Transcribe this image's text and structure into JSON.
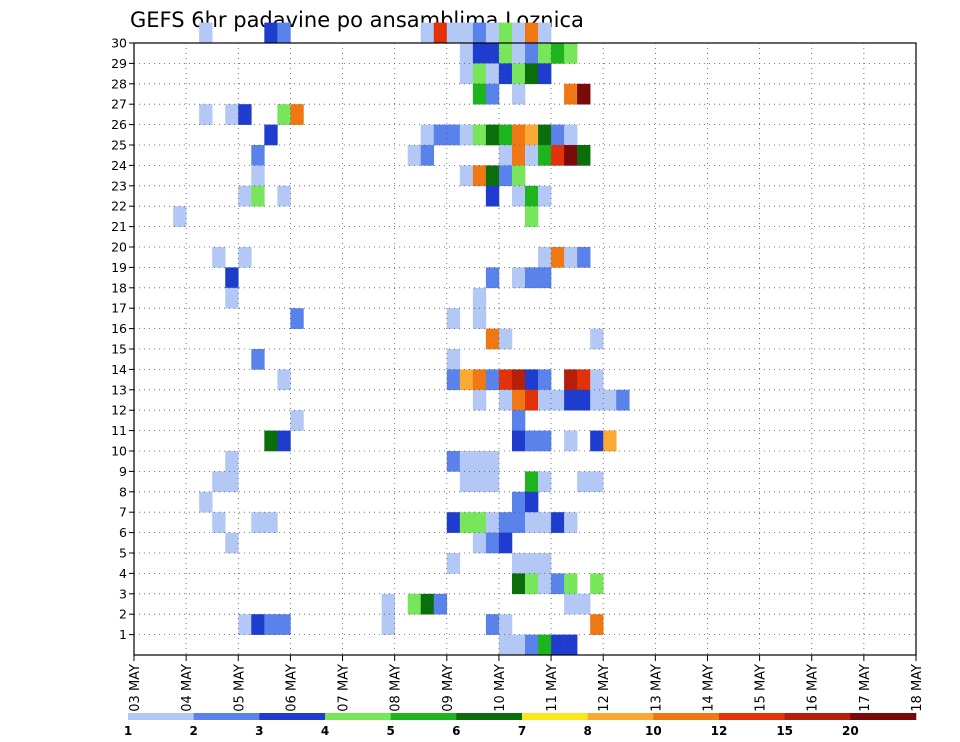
{
  "chart_data": {
    "type": "heatmap",
    "title": "GEFS 6hr padavine po ansamblima Loznica",
    "xlabel": "",
    "ylabel": "",
    "x_ticks": [
      "03 MAY",
      "04 MAY",
      "05 MAY",
      "06 MAY",
      "07 MAY",
      "08 MAY",
      "09 MAY",
      "10 MAY",
      "11 MAY",
      "12 MAY",
      "13 MAY",
      "14 MAY",
      "15 MAY",
      "16 MAY",
      "17 MAY",
      "18 MAY"
    ],
    "y_ticks": [
      "1",
      "2",
      "3",
      "4",
      "5",
      "6",
      "7",
      "8",
      "9",
      "10",
      "11",
      "12",
      "13",
      "14",
      "15",
      "16",
      "17",
      "18",
      "19",
      "20",
      "21",
      "22",
      "23",
      "24",
      "25",
      "26",
      "27",
      "28",
      "29",
      "30"
    ],
    "xlim": [
      0,
      60
    ],
    "ylim": [
      0,
      30
    ],
    "grid": true,
    "legend_position": "bottom",
    "legend": {
      "labels": [
        "1",
        "2",
        "3",
        "4",
        "5",
        "6",
        "7",
        "8",
        "10",
        "12",
        "15",
        "20"
      ],
      "colors": [
        "#b4c8f5",
        "#5a82eb",
        "#1e3ccd",
        "#78e65a",
        "#1eb41e",
        "#0a6e0a",
        "#fae61e",
        "#faaa32",
        "#f07814",
        "#e1320a",
        "#b41e0a",
        "#780a0a"
      ]
    },
    "cells": [
      [
        30,
        5,
        1
      ],
      [
        30,
        10,
        3
      ],
      [
        30,
        11,
        2
      ],
      [
        30,
        22,
        1
      ],
      [
        30,
        23,
        12
      ],
      [
        30,
        24,
        1
      ],
      [
        30,
        25,
        1
      ],
      [
        30,
        26,
        2
      ],
      [
        30,
        27,
        1
      ],
      [
        30,
        28,
        4
      ],
      [
        30,
        29,
        1
      ],
      [
        30,
        30,
        10
      ],
      [
        30,
        31,
        1
      ],
      [
        29,
        25,
        1
      ],
      [
        29,
        26,
        3
      ],
      [
        29,
        27,
        3
      ],
      [
        29,
        28,
        4
      ],
      [
        29,
        29,
        1
      ],
      [
        29,
        30,
        2
      ],
      [
        29,
        31,
        4
      ],
      [
        29,
        32,
        5
      ],
      [
        29,
        33,
        4
      ],
      [
        28,
        25,
        1
      ],
      [
        28,
        26,
        4
      ],
      [
        28,
        27,
        1
      ],
      [
        28,
        28,
        3
      ],
      [
        28,
        29,
        4
      ],
      [
        28,
        30,
        6
      ],
      [
        28,
        31,
        3
      ],
      [
        27,
        26,
        5
      ],
      [
        27,
        27,
        2
      ],
      [
        27,
        29,
        1
      ],
      [
        27,
        33,
        10
      ],
      [
        27,
        34,
        20
      ],
      [
        26,
        5,
        1
      ],
      [
        26,
        7,
        1
      ],
      [
        26,
        8,
        3
      ],
      [
        26,
        11,
        4
      ],
      [
        26,
        12,
        10
      ],
      [
        25,
        10,
        3
      ],
      [
        25,
        22,
        1
      ],
      [
        25,
        23,
        2
      ],
      [
        25,
        24,
        2
      ],
      [
        25,
        25,
        1
      ],
      [
        25,
        26,
        4
      ],
      [
        25,
        27,
        6
      ],
      [
        25,
        28,
        5
      ],
      [
        25,
        29,
        10
      ],
      [
        25,
        30,
        8
      ],
      [
        25,
        31,
        6
      ],
      [
        25,
        32,
        2
      ],
      [
        25,
        33,
        1
      ],
      [
        24,
        9,
        2
      ],
      [
        24,
        21,
        1
      ],
      [
        24,
        22,
        2
      ],
      [
        24,
        28,
        1
      ],
      [
        24,
        29,
        10
      ],
      [
        24,
        30,
        1
      ],
      [
        24,
        31,
        5
      ],
      [
        24,
        32,
        12
      ],
      [
        24,
        33,
        20
      ],
      [
        24,
        34,
        6
      ],
      [
        23,
        9,
        1
      ],
      [
        23,
        25,
        1
      ],
      [
        23,
        26,
        10
      ],
      [
        23,
        27,
        6
      ],
      [
        23,
        28,
        2
      ],
      [
        23,
        29,
        4
      ],
      [
        22,
        8,
        1
      ],
      [
        22,
        9,
        4
      ],
      [
        22,
        11,
        1
      ],
      [
        22,
        27,
        3
      ],
      [
        22,
        29,
        1
      ],
      [
        22,
        30,
        5
      ],
      [
        22,
        31,
        1
      ],
      [
        21,
        3,
        1
      ],
      [
        21,
        30,
        4
      ],
      [
        19,
        6,
        1
      ],
      [
        19,
        8,
        1
      ],
      [
        19,
        31,
        1
      ],
      [
        19,
        32,
        10
      ],
      [
        19,
        33,
        1
      ],
      [
        19,
        34,
        2
      ],
      [
        18,
        7,
        3
      ],
      [
        18,
        27,
        2
      ],
      [
        18,
        29,
        1
      ],
      [
        18,
        30,
        2
      ],
      [
        18,
        31,
        2
      ],
      [
        17,
        7,
        1
      ],
      [
        17,
        26,
        1
      ],
      [
        16,
        12,
        2
      ],
      [
        16,
        24,
        1
      ],
      [
        16,
        26,
        1
      ],
      [
        15,
        27,
        10
      ],
      [
        15,
        28,
        1
      ],
      [
        15,
        35,
        1
      ],
      [
        14,
        9,
        2
      ],
      [
        14,
        24,
        1
      ],
      [
        13,
        11,
        1
      ],
      [
        13,
        24,
        2
      ],
      [
        13,
        25,
        8
      ],
      [
        13,
        26,
        10
      ],
      [
        13,
        27,
        2
      ],
      [
        13,
        28,
        12
      ],
      [
        13,
        29,
        15
      ],
      [
        13,
        30,
        3
      ],
      [
        13,
        31,
        2
      ],
      [
        13,
        33,
        15
      ],
      [
        13,
        34,
        12
      ],
      [
        13,
        35,
        1
      ],
      [
        12,
        26,
        1
      ],
      [
        12,
        28,
        1
      ],
      [
        12,
        29,
        10
      ],
      [
        12,
        30,
        12
      ],
      [
        12,
        31,
        1
      ],
      [
        12,
        32,
        1
      ],
      [
        12,
        33,
        3
      ],
      [
        12,
        34,
        3
      ],
      [
        12,
        35,
        1
      ],
      [
        12,
        36,
        1
      ],
      [
        12,
        37,
        2
      ],
      [
        11,
        12,
        1
      ],
      [
        11,
        29,
        2
      ],
      [
        10,
        10,
        6
      ],
      [
        10,
        11,
        3
      ],
      [
        10,
        29,
        3
      ],
      [
        10,
        30,
        2
      ],
      [
        10,
        31,
        2
      ],
      [
        10,
        33,
        1
      ],
      [
        10,
        35,
        3
      ],
      [
        10,
        36,
        8
      ],
      [
        9,
        7,
        1
      ],
      [
        9,
        24,
        2
      ],
      [
        9,
        25,
        1
      ],
      [
        9,
        26,
        1
      ],
      [
        9,
        27,
        1
      ],
      [
        8,
        6,
        1
      ],
      [
        8,
        7,
        1
      ],
      [
        8,
        25,
        1
      ],
      [
        8,
        26,
        1
      ],
      [
        8,
        27,
        1
      ],
      [
        8,
        30,
        5
      ],
      [
        8,
        31,
        1
      ],
      [
        8,
        34,
        1
      ],
      [
        8,
        35,
        1
      ],
      [
        7,
        5,
        1
      ],
      [
        7,
        29,
        2
      ],
      [
        7,
        30,
        3
      ],
      [
        6,
        6,
        1
      ],
      [
        6,
        9,
        1
      ],
      [
        6,
        10,
        1
      ],
      [
        6,
        24,
        3
      ],
      [
        6,
        25,
        4
      ],
      [
        6,
        26,
        4
      ],
      [
        6,
        27,
        1
      ],
      [
        6,
        28,
        2
      ],
      [
        6,
        29,
        2
      ],
      [
        6,
        30,
        1
      ],
      [
        6,
        31,
        1
      ],
      [
        6,
        32,
        3
      ],
      [
        6,
        33,
        1
      ],
      [
        5,
        7,
        1
      ],
      [
        5,
        26,
        1
      ],
      [
        5,
        27,
        2
      ],
      [
        5,
        28,
        3
      ],
      [
        4,
        24,
        1
      ],
      [
        4,
        29,
        1
      ],
      [
        4,
        30,
        1
      ],
      [
        4,
        31,
        1
      ],
      [
        3,
        29,
        6
      ],
      [
        3,
        30,
        4
      ],
      [
        3,
        31,
        1
      ],
      [
        3,
        32,
        2
      ],
      [
        3,
        33,
        4
      ],
      [
        3,
        35,
        4
      ],
      [
        2,
        19,
        1
      ],
      [
        2,
        21,
        4
      ],
      [
        2,
        22,
        6
      ],
      [
        2,
        23,
        2
      ],
      [
        2,
        33,
        1
      ],
      [
        2,
        34,
        1
      ],
      [
        1,
        8,
        1
      ],
      [
        1,
        9,
        3
      ],
      [
        1,
        10,
        2
      ],
      [
        1,
        11,
        2
      ],
      [
        1,
        19,
        1
      ],
      [
        1,
        27,
        2
      ],
      [
        1,
        28,
        1
      ],
      [
        1,
        35,
        10
      ],
      [
        0,
        28,
        1
      ],
      [
        0,
        29,
        1
      ],
      [
        0,
        30,
        2
      ],
      [
        0,
        31,
        5
      ],
      [
        0,
        32,
        3
      ],
      [
        0,
        33,
        3
      ]
    ]
  }
}
